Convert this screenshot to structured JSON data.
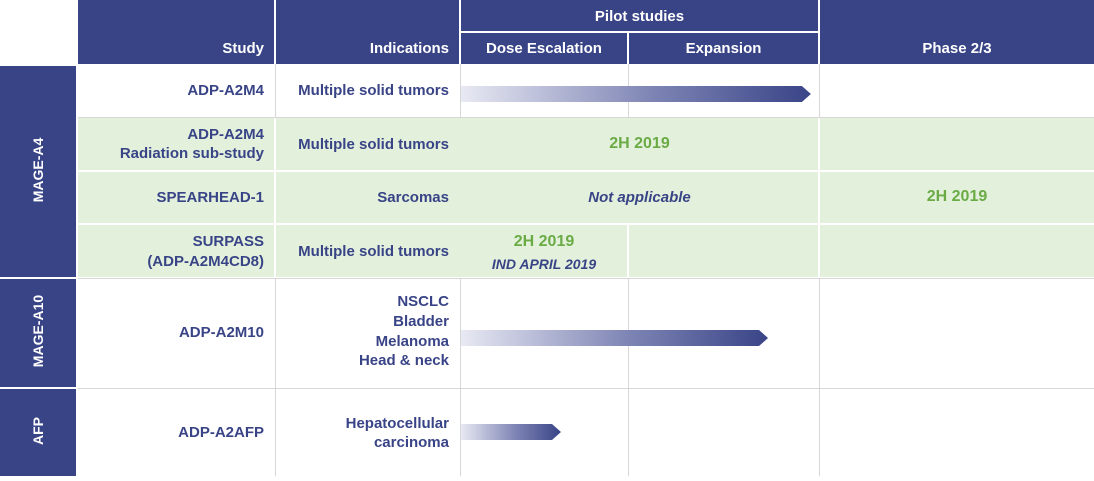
{
  "header": {
    "study": "Study",
    "indications": "Indications",
    "pilot_studies": "Pilot studies",
    "dose_escalation": "Dose Escalation",
    "expansion": "Expansion",
    "phase23": "Phase 2/3"
  },
  "groups": {
    "mage_a4": "MAGE-A4",
    "mage_a10": "MAGE-A10",
    "afp": "AFP"
  },
  "rows": {
    "r1": {
      "study": "ADP-A2M4",
      "indication": "Multiple solid tumors"
    },
    "r2": {
      "study_line1": "ADP-A2M4",
      "study_line2": "Radiation sub-study",
      "indication": "Multiple solid tumors",
      "pilot_status": "2H 2019"
    },
    "r3": {
      "study": "SPEARHEAD-1",
      "indication": "Sarcomas",
      "pilot_status": "Not applicable",
      "phase_status": "2H 2019"
    },
    "r4": {
      "study_line1": "SURPASS",
      "study_line2": "(ADP-A2M4CD8)",
      "indication": "Multiple solid tumors",
      "dose_status": "2H 2019",
      "dose_note": "IND APRIL 2019"
    },
    "r5": {
      "study": "ADP-A2M10",
      "ind1": "NSCLC",
      "ind2": "Bladder",
      "ind3": "Melanoma",
      "ind4": "Head & neck"
    },
    "r6": {
      "study": "ADP-A2AFP",
      "ind1": "Hepatocellular",
      "ind2": "carcinoma"
    }
  },
  "progress": {
    "r1_fraction": 0.98,
    "r5_fraction": 0.86,
    "r6_fraction": 0.28
  },
  "colors": {
    "navy": "#394487",
    "green_bg": "#e3f1dc",
    "green_text": "#6aab45"
  }
}
